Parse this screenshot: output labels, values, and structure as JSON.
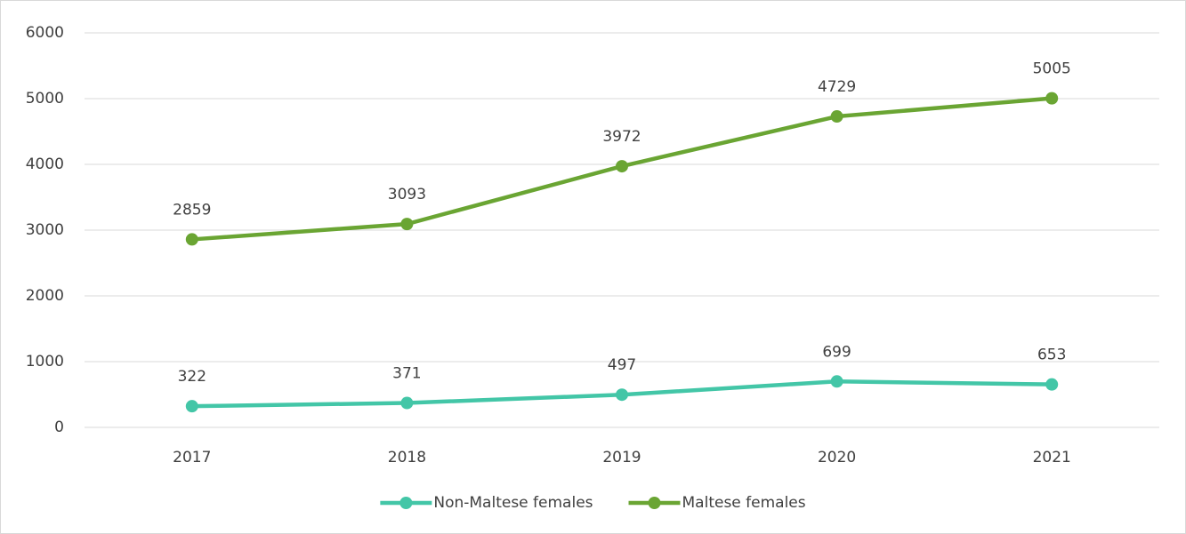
{
  "chart_data": {
    "type": "line",
    "categories": [
      "2017",
      "2018",
      "2019",
      "2020",
      "2021"
    ],
    "series": [
      {
        "name": "Non-Maltese females",
        "color": "#43c6a7",
        "values": [
          322,
          371,
          497,
          699,
          653
        ]
      },
      {
        "name": "Maltese females",
        "color": "#6aa533",
        "values": [
          2859,
          3093,
          3972,
          4729,
          5005
        ]
      }
    ],
    "ylim": [
      0,
      6000
    ],
    "yticks": [
      0,
      1000,
      2000,
      3000,
      4000,
      5000,
      6000
    ],
    "grid": true,
    "legend": "bottom",
    "data_labels": true
  }
}
